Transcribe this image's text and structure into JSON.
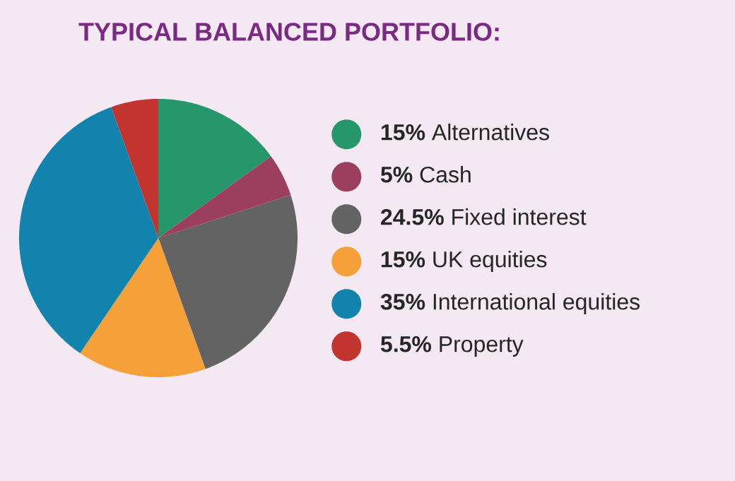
{
  "chart_data": {
    "type": "pie",
    "title": "TYPICAL BALANCED PORTFOLIO:",
    "categories": [
      "**15%** Alternatives",
      "**5%** Cash",
      "**24.5%** Fixed interest",
      "**15%** UK equities",
      "**35%** International equities",
      "**5.5%** Property"
    ],
    "values": [
      15,
      5,
      24.5,
      15,
      35,
      5.5
    ],
    "colors": [
      "#26976a",
      "#9c3f5f",
      "#636363",
      "#f6a03a",
      "#1283ad",
      "#c2352f"
    ],
    "legend": "right"
  }
}
